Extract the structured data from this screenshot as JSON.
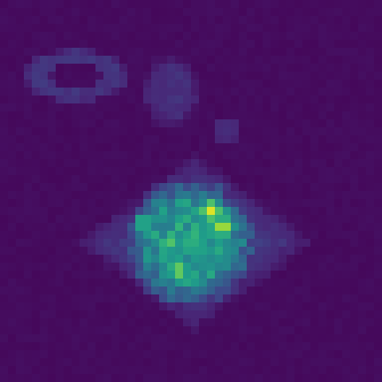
{
  "image": {
    "kind": "pixelated-intensity-map",
    "colormap": "viridis",
    "colormap_stops": [
      "#440154",
      "#482878",
      "#3e4989",
      "#31688e",
      "#26828e",
      "#1f9e89",
      "#35b779",
      "#6ece58",
      "#b5de2b",
      "#fde725"
    ],
    "grid": [
      48,
      48
    ],
    "value_range": [
      0,
      1
    ],
    "background_level": 0.02,
    "features": [
      {
        "name": "bright-lesion",
        "center": [
          23.5,
          30
        ],
        "radii": [
          8.5,
          8.5
        ],
        "peak": 0.55,
        "noise": 0.22
      },
      {
        "name": "surrounding-tissue-diamond",
        "center": [
          24,
          30
        ],
        "radii": [
          16,
          12
        ],
        "peak": 0.18,
        "noise": 0.05
      },
      {
        "name": "upper-left-loop",
        "center": [
          9,
          9
        ],
        "radii": [
          6,
          3
        ],
        "peak": 0.15,
        "noise": 0.05
      },
      {
        "name": "upper-mid-blob",
        "center": [
          21,
          11
        ],
        "radii": [
          4,
          5
        ],
        "peak": 0.14,
        "noise": 0.05
      },
      {
        "name": "small-mid-blob",
        "center": [
          28,
          16
        ],
        "radii": [
          2,
          2
        ],
        "peak": 0.13,
        "noise": 0.04
      }
    ],
    "hotspots": [
      [
        26,
        26,
        0.95
      ],
      [
        27.5,
        28,
        0.9
      ],
      [
        22,
        33.5,
        0.8
      ],
      [
        21,
        30,
        0.72
      ],
      [
        17.5,
        27.5,
        0.65
      ],
      [
        25,
        30.5,
        0.6
      ]
    ]
  }
}
